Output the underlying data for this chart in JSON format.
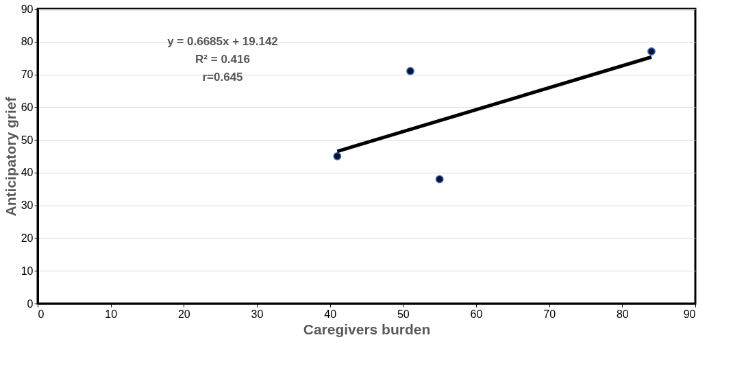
{
  "chart_data": {
    "type": "scatter",
    "xlabel": "Caregivers burden",
    "ylabel": "Anticipatory grief",
    "xlim": [
      0,
      90
    ],
    "ylim": [
      0,
      90
    ],
    "xticks": [
      0,
      10,
      20,
      30,
      40,
      50,
      60,
      70,
      80,
      90
    ],
    "yticks": [
      0,
      10,
      20,
      30,
      40,
      50,
      60,
      70,
      80,
      90
    ],
    "grid": "y",
    "series": [
      {
        "color": "#0a1430",
        "marker": "circle",
        "x": [
          41,
          51,
          55,
          84
        ],
        "values": [
          45,
          71,
          38,
          77
        ]
      },
      {
        "type": "line",
        "color": "#000000",
        "x": [
          41,
          84
        ],
        "values": [
          46.5,
          75.3
        ]
      }
    ],
    "annotations": [
      "y = 0.6685x + 19.142",
      "R² = 0.416",
      "r=0.645"
    ]
  }
}
